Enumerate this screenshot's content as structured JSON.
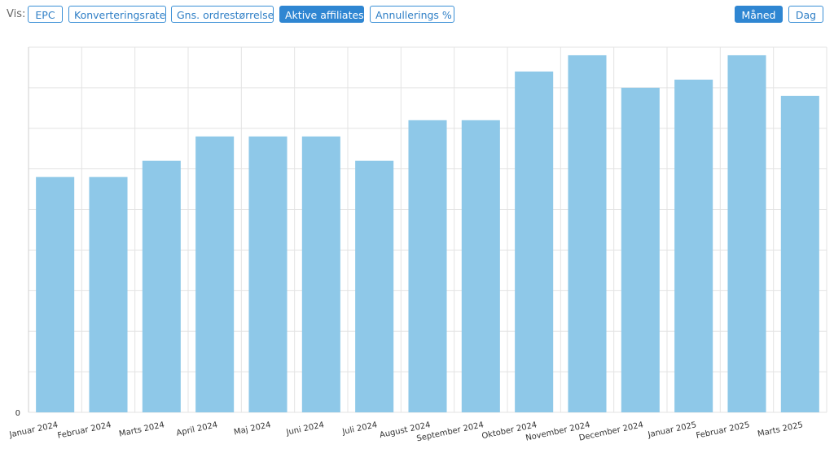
{
  "toolbar": {
    "vis_label": "Vis:",
    "metric_buttons": [
      {
        "label": "EPC",
        "active": false
      },
      {
        "label": "Konverteringsrate",
        "active": false
      },
      {
        "label": "Gns. ordrestørrelse",
        "active": false
      },
      {
        "label": "Aktive affiliates",
        "active": true
      },
      {
        "label": "Annullerings %",
        "active": false
      }
    ],
    "period_buttons": [
      {
        "label": "Måned",
        "active": true
      },
      {
        "label": "Dag",
        "active": false
      }
    ]
  },
  "colors": {
    "accent": "#2f86d2",
    "bar": "#8ec8e8",
    "grid": "#e3e3e3"
  },
  "chart_data": {
    "type": "bar",
    "categories": [
      "Januar 2024",
      "Februar 2024",
      "Marts 2024",
      "April 2024",
      "Maj 2024",
      "Juni 2024",
      "Juli 2024",
      "August 2024",
      "September 2024",
      "Oktober 2024",
      "November 2024",
      "December 2024",
      "Januar 2025",
      "Februar 2025",
      "Marts 2025"
    ],
    "values": [
      29,
      29,
      31,
      34,
      34,
      34,
      31,
      36,
      36,
      42,
      44,
      40,
      41,
      44,
      39
    ],
    "ylim": [
      0,
      45
    ],
    "y_tick_labels_shown": [
      "0"
    ],
    "grid": true
  }
}
